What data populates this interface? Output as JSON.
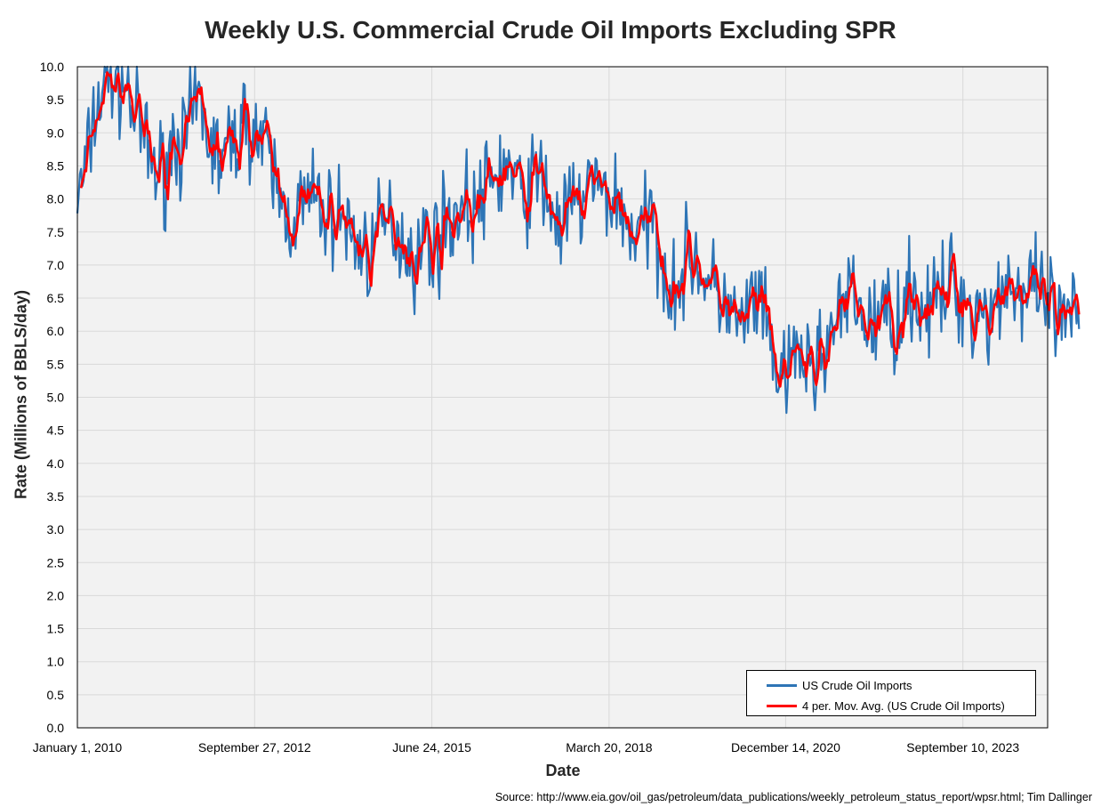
{
  "chart_data": {
    "type": "line",
    "title": "Weekly U.S. Commercial Crude Oil Imports Excluding SPR",
    "xlabel": "Date",
    "ylabel": "Rate (Millions of BBLS/day)",
    "ylim": [
      0,
      10
    ],
    "y_ticks": [
      "0.0",
      "0.5",
      "1.0",
      "1.5",
      "2.0",
      "2.5",
      "3.0",
      "3.5",
      "4.0",
      "4.5",
      "5.0",
      "5.5",
      "6.0",
      "6.5",
      "7.0",
      "7.5",
      "8.0",
      "8.5",
      "9.0",
      "9.5",
      "10.0"
    ],
    "x_range_years": [
      2010.0,
      2025.0
    ],
    "x_ticks": [
      {
        "label": "January 1, 2010",
        "year": 2010.0
      },
      {
        "label": "September 27, 2012",
        "year": 2012.74
      },
      {
        "label": "June 24, 2015",
        "year": 2015.48
      },
      {
        "label": "March 20, 2018",
        "year": 2018.22
      },
      {
        "label": "December 14, 2020",
        "year": 2020.95
      },
      {
        "label": "September 10, 2023",
        "year": 2023.69
      }
    ],
    "grid": true,
    "legend_position": "bottom-right",
    "series": [
      {
        "name": "US Crude Oil Imports",
        "color": "#2e75b6",
        "x_start_year": 2010.0,
        "x_step_years": 0.125,
        "values": [
          8.0,
          8.4,
          9.2,
          9.6,
          9.9,
          9.8,
          9.7,
          9.3,
          9.0,
          8.6,
          8.4,
          8.5,
          9.0,
          8.8,
          9.1,
          9.5,
          9.0,
          8.7,
          8.6,
          8.8,
          9.0,
          9.2,
          9.0,
          8.8,
          8.5,
          8.0,
          7.7,
          7.8,
          7.9,
          8.0,
          7.9,
          7.7,
          7.8,
          7.7,
          7.4,
          7.3,
          7.2,
          7.4,
          7.6,
          7.7,
          7.4,
          7.3,
          7.0,
          7.5,
          7.3,
          7.5,
          7.7,
          7.8,
          7.9,
          7.8,
          8.0,
          8.2,
          8.4,
          8.5,
          8.3,
          8.0,
          8.2,
          8.4,
          8.1,
          7.7,
          7.6,
          7.9,
          7.8,
          8.3,
          8.2,
          8.0,
          8.1,
          7.9,
          7.6,
          7.5,
          7.5,
          7.7,
          7.3,
          6.8,
          6.7,
          6.9,
          7.2,
          7.0,
          6.6,
          6.6,
          6.5,
          6.2,
          6.0,
          6.3,
          6.5,
          6.1,
          5.6,
          5.3,
          5.2,
          5.8,
          5.5,
          5.4,
          5.7,
          5.9,
          6.1,
          6.4,
          6.5,
          6.3,
          6.0,
          6.2,
          6.3,
          6.1,
          6.4,
          6.6,
          6.5,
          6.3,
          6.4,
          6.5,
          6.8,
          6.6,
          6.4,
          6.3,
          6.4,
          6.2,
          6.6,
          6.8,
          6.7,
          6.4,
          6.6,
          6.5,
          6.4,
          6.2,
          6.0,
          6.2,
          6.1
        ]
      },
      {
        "name": "4 per. Mov. Avg. (US Crude Oil Imports)",
        "color": "#ff0000"
      }
    ]
  },
  "source_note": "Source: http://www.eia.gov/oil_gas/petroleum/data_publications/weekly_petroleum_status_report/wpsr.html; Tim Dallinger"
}
